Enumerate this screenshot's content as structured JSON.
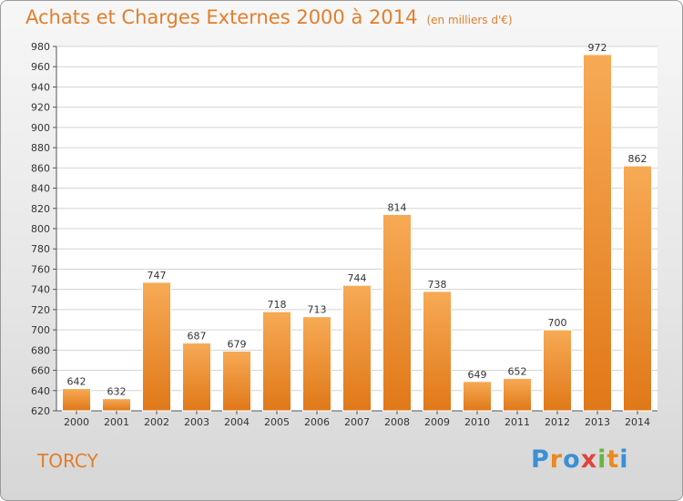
{
  "header": {
    "title": "Achats et Charges Externes 2000 à 2014",
    "subtitle": "(en milliers d'€)"
  },
  "footer": {
    "town": "TORCY",
    "logo": "Proxiti"
  },
  "colors": {
    "bar_light": "#f7aa55",
    "bar_dark": "#e07818",
    "title": "#e37e2b"
  },
  "chart_data": {
    "type": "bar",
    "title": "Achats et Charges Externes 2000 à 2014",
    "subtitle": "(en milliers d'€)",
    "categories": [
      "2000",
      "2001",
      "2002",
      "2003",
      "2004",
      "2005",
      "2006",
      "2007",
      "2008",
      "2009",
      "2010",
      "2011",
      "2012",
      "2013",
      "2014"
    ],
    "values": [
      642,
      632,
      747,
      687,
      679,
      718,
      713,
      744,
      814,
      738,
      649,
      652,
      700,
      972,
      862
    ],
    "ylim": [
      620,
      980
    ],
    "yticks": [
      620,
      640,
      660,
      680,
      700,
      720,
      740,
      760,
      780,
      800,
      820,
      840,
      860,
      880,
      900,
      920,
      940,
      960,
      980
    ],
    "grid": true,
    "legend": "none"
  }
}
